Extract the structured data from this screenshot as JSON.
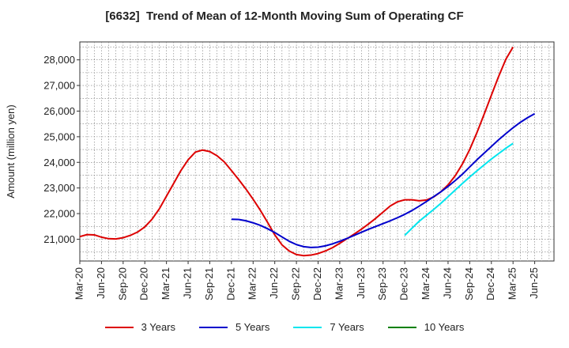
{
  "chart_data": {
    "type": "line",
    "title": "[6632]  Trend of Mean of 12-Month Moving Sum of Operating CF",
    "xlabel": "",
    "ylabel": "Amount (million yen)",
    "ylim": [
      20150,
      28700
    ],
    "yticks": [
      21000,
      22000,
      23000,
      24000,
      25000,
      26000,
      27000,
      28000
    ],
    "ytick_labels": [
      "21,000",
      "22,000",
      "23,000",
      "24,000",
      "25,000",
      "26,000",
      "27,000",
      "28,000"
    ],
    "xtick_labels": [
      "Mar-20",
      "Jun-20",
      "Sep-20",
      "Dec-20",
      "Mar-21",
      "Jun-21",
      "Sep-21",
      "Dec-21",
      "Mar-22",
      "Jun-22",
      "Sep-22",
      "Dec-22",
      "Mar-23",
      "Jun-23",
      "Sep-23",
      "Dec-23",
      "Mar-24",
      "Jun-24",
      "Sep-24",
      "Dec-24",
      "Mar-25",
      "Jun-25"
    ],
    "grid": true,
    "legend_position": "bottom",
    "series": [
      {
        "name": "3 Years",
        "color": "#dd0000",
        "start_month_index": 0,
        "values": [
          21100,
          21180,
          21170,
          21080,
          21020,
          21010,
          21060,
          21150,
          21280,
          21480,
          21780,
          22180,
          22680,
          23180,
          23680,
          24100,
          24400,
          24480,
          24420,
          24260,
          24020,
          23680,
          23330,
          22960,
          22560,
          22130,
          21660,
          21170,
          20780,
          20540,
          20400,
          20360,
          20380,
          20440,
          20540,
          20670,
          20840,
          21020,
          21200,
          21390,
          21600,
          21820,
          22060,
          22300,
          22460,
          22540,
          22540,
          22500,
          22530,
          22650,
          22850,
          23120,
          23480,
          23940,
          24500,
          25160,
          25880,
          26620,
          27350,
          28020,
          28500
        ]
      },
      {
        "name": "5 Years",
        "color": "#0000cc",
        "start_month_index": 21,
        "values": [
          21780,
          21770,
          21720,
          21640,
          21540,
          21410,
          21260,
          21090,
          20920,
          20790,
          20710,
          20680,
          20690,
          20740,
          20820,
          20920,
          21030,
          21150,
          21270,
          21390,
          21500,
          21610,
          21720,
          21840,
          21970,
          22120,
          22290,
          22470,
          22660,
          22850,
          23060,
          23290,
          23540,
          23820,
          24100,
          24360,
          24620,
          24880,
          25120,
          25350,
          25560,
          25740,
          25900
        ]
      },
      {
        "name": "7 Years",
        "color": "#00e5ee",
        "start_month_index": 45,
        "values": [
          21150,
          21430,
          21700,
          21930,
          22160,
          22400,
          22660,
          22920,
          23180,
          23430,
          23670,
          23900,
          24130,
          24340,
          24550,
          24740
        ]
      },
      {
        "name": "10 Years",
        "color": "#008000",
        "start_month_index": 0,
        "values": []
      }
    ]
  }
}
